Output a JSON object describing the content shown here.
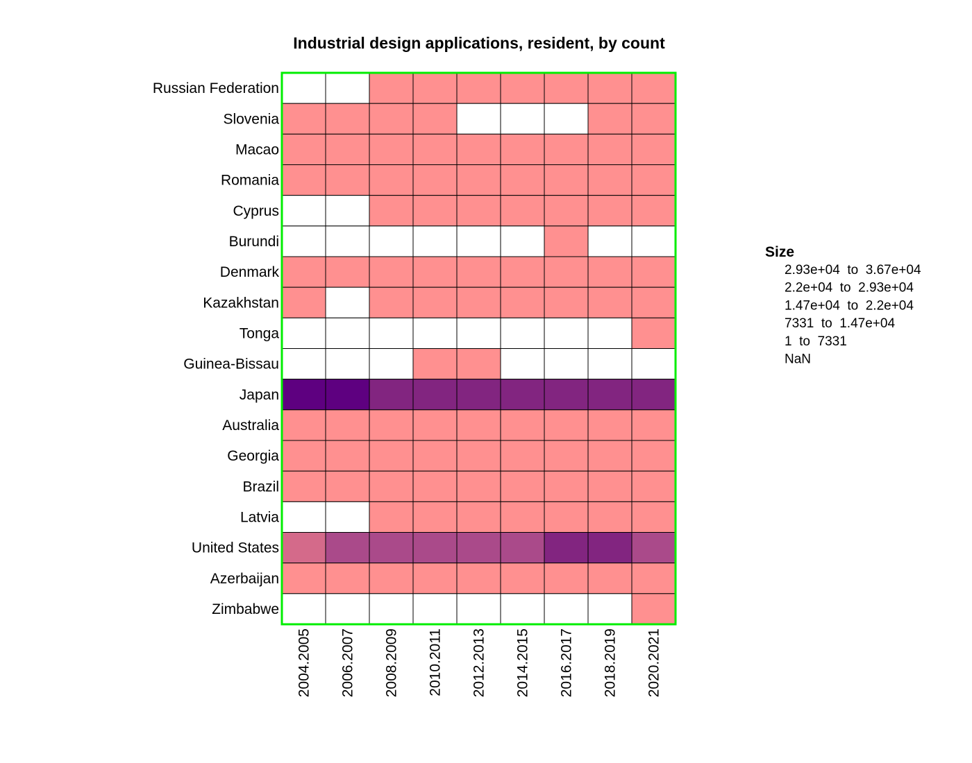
{
  "chart_data": {
    "type": "heatmap",
    "title": "Industrial design applications, resident, by count",
    "xlabel": "",
    "ylabel": "",
    "x": [
      "2004.2005",
      "2006.2007",
      "2008.2009",
      "2010.2011",
      "2012.2013",
      "2014.2015",
      "2016.2017",
      "2018.2019",
      "2020.2021"
    ],
    "y": [
      "Russian Federation",
      "Slovenia",
      "Macao",
      "Romania",
      "Cyprus",
      "Burundi",
      "Denmark",
      "Kazakhstan",
      "Tonga",
      "Guinea-Bissau",
      "Japan",
      "Australia",
      "Georgia",
      "Brazil",
      "Latvia",
      "United States",
      "Azerbaijan",
      "Zimbabwe"
    ],
    "bins": [
      5,
      4,
      3,
      2,
      1,
      0
    ],
    "bin_labels": [
      "NaN",
      "1  to  7331",
      "7331  to  1.47e+04",
      "1.47e+04  to  2.2e+04",
      "2.2e+04  to  2.93e+04",
      "2.93e+04  to  3.67e+04"
    ],
    "bin_colors": [
      "#ffffff",
      "#ff9090",
      "#d46a8a",
      "#aa4a8a",
      "#822580",
      "#5e0080"
    ],
    "values": [
      [
        0,
        0,
        1,
        1,
        1,
        1,
        1,
        1,
        1
      ],
      [
        1,
        1,
        1,
        1,
        0,
        0,
        0,
        1,
        1
      ],
      [
        1,
        1,
        1,
        1,
        1,
        1,
        1,
        1,
        1
      ],
      [
        1,
        1,
        1,
        1,
        1,
        1,
        1,
        1,
        1
      ],
      [
        0,
        0,
        1,
        1,
        1,
        1,
        1,
        1,
        1
      ],
      [
        0,
        0,
        0,
        0,
        0,
        0,
        1,
        0,
        0
      ],
      [
        1,
        1,
        1,
        1,
        1,
        1,
        1,
        1,
        1
      ],
      [
        1,
        0,
        1,
        1,
        1,
        1,
        1,
        1,
        1
      ],
      [
        0,
        0,
        0,
        0,
        0,
        0,
        0,
        0,
        1
      ],
      [
        0,
        0,
        0,
        1,
        1,
        0,
        0,
        0,
        0
      ],
      [
        5,
        5,
        4,
        4,
        4,
        4,
        4,
        4,
        4
      ],
      [
        1,
        1,
        1,
        1,
        1,
        1,
        1,
        1,
        1
      ],
      [
        1,
        1,
        1,
        1,
        1,
        1,
        1,
        1,
        1
      ],
      [
        1,
        1,
        1,
        1,
        1,
        1,
        1,
        1,
        1
      ],
      [
        0,
        0,
        1,
        1,
        1,
        1,
        1,
        1,
        1
      ],
      [
        2,
        3,
        3,
        3,
        3,
        3,
        4,
        4,
        3
      ],
      [
        1,
        1,
        1,
        1,
        1,
        1,
        1,
        1,
        1
      ],
      [
        0,
        0,
        0,
        0,
        0,
        0,
        0,
        0,
        1
      ]
    ],
    "legend": {
      "title": "Size",
      "position": "right",
      "entries": [
        "2.93e+04  to  3.67e+04",
        "2.2e+04  to  2.93e+04",
        "1.47e+04  to  2.2e+04",
        "7331  to  1.47e+04",
        "1  to  7331",
        "NaN"
      ]
    },
    "border_color": "#00ee00",
    "grid": true
  }
}
